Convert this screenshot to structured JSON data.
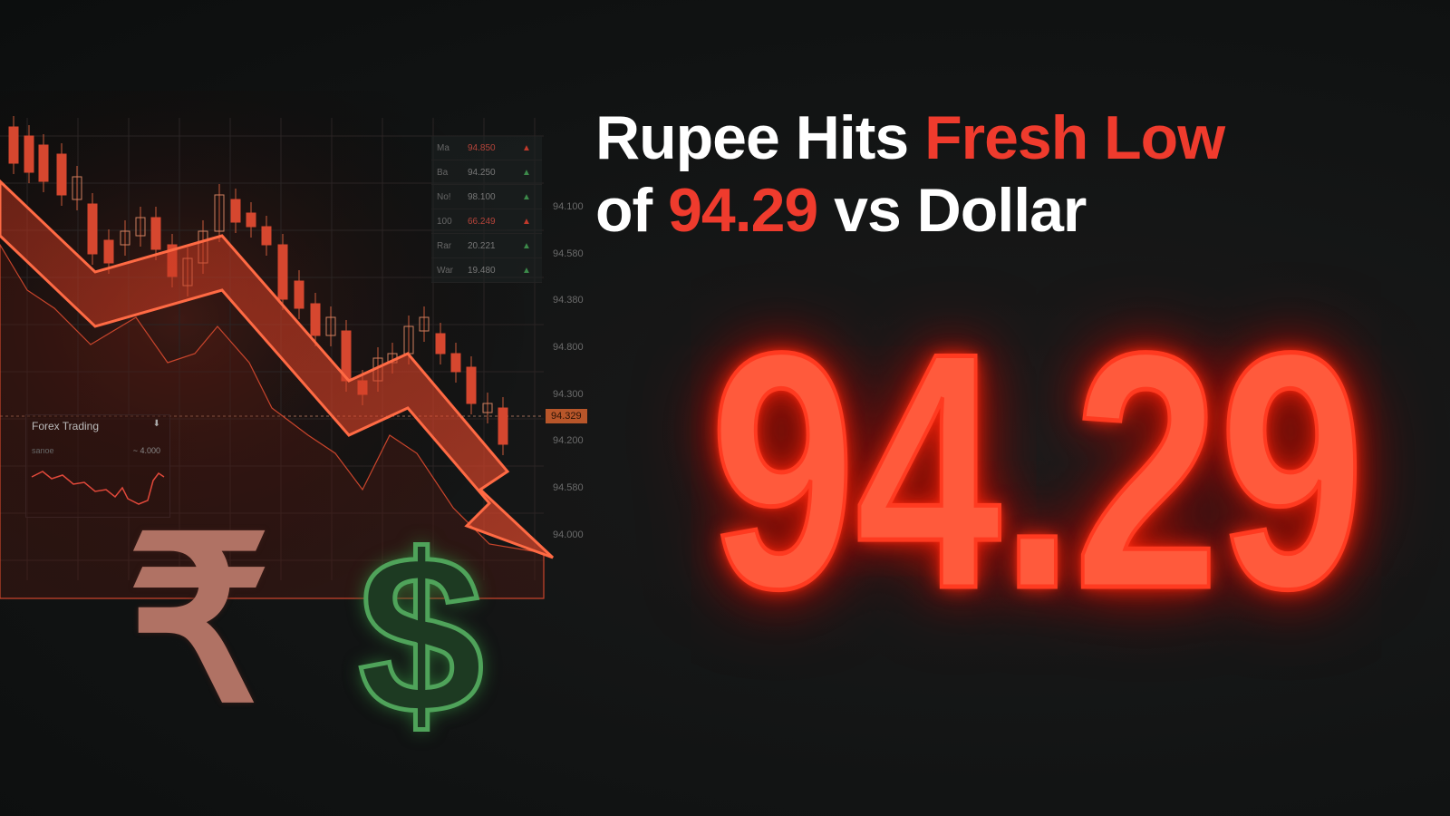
{
  "headline": {
    "line1_white": "Rupee Hits ",
    "line1_red": "Fresh Low",
    "line2_white_a": "of ",
    "line2_red": "94.29",
    "line2_white_b": " vs Dollar"
  },
  "big_number": "94.29",
  "price_axis": [
    "94.100",
    "94.580",
    "94.380",
    "94.800",
    "94.300",
    "94.200",
    "94.580",
    "94.000"
  ],
  "price_axis_current": "94.329",
  "ticker_table": [
    {
      "label": "Ma",
      "value": "94.850",
      "dir": "down"
    },
    {
      "label": "Ba",
      "value": "94.250",
      "dir": "up"
    },
    {
      "label": "No!",
      "value": "98.100",
      "dir": "up"
    },
    {
      "label": "100",
      "value": "66.249",
      "dir": "down"
    },
    {
      "label": "Rar",
      "value": "20.221",
      "dir": "up"
    },
    {
      "label": "War",
      "value": "19.480",
      "dir": "up"
    }
  ],
  "forex_card": {
    "title": "Forex Trading",
    "icon": "download-icon",
    "label": "sanoe",
    "value": "~ 4.000"
  },
  "symbols": {
    "rupee": "₹",
    "dollar": "$"
  },
  "colors": {
    "accent_red": "#ef3b2d",
    "glow": "#ff5a3c",
    "dollar_green": "#4fa35a",
    "rupee": "#b07264"
  }
}
